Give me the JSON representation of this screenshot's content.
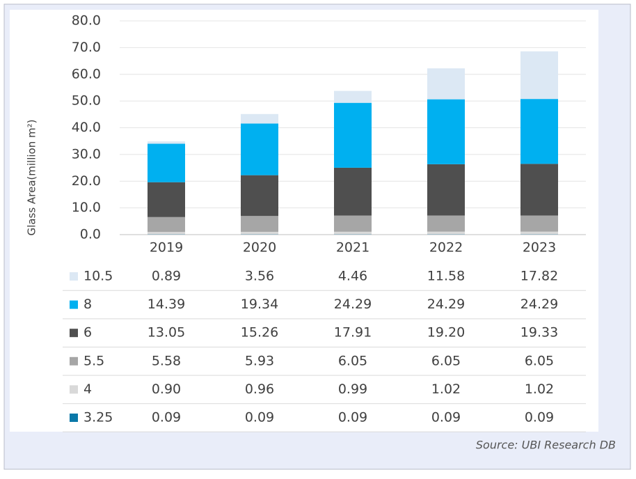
{
  "chart_data": {
    "type": "stacked-bar",
    "y_label": "Glass Area(million m²)",
    "source": "Source: UBI Research DB",
    "categories": [
      "2019",
      "2020",
      "2021",
      "2022",
      "2023"
    ],
    "ylim": [
      0,
      80
    ],
    "yticks": [
      {
        "value": 0,
        "label": "0.0"
      },
      {
        "value": 10,
        "label": "10.0"
      },
      {
        "value": 20,
        "label": "20.0"
      },
      {
        "value": 30,
        "label": "30.0"
      },
      {
        "value": 40,
        "label": "40.0"
      },
      {
        "value": 50,
        "label": "50.0"
      },
      {
        "value": 60,
        "label": "60.0"
      },
      {
        "value": 70,
        "label": "70.0"
      },
      {
        "value": 80,
        "label": "80.0"
      }
    ],
    "grid": true,
    "series": [
      {
        "name": "3.25",
        "color": "#0a78a8",
        "values": [
          0.09,
          0.09,
          0.09,
          0.09,
          0.09
        ],
        "value_labels": [
          "0.09",
          "0.09",
          "0.09",
          "0.09",
          "0.09"
        ]
      },
      {
        "name": "4",
        "color": "#d9d9d9",
        "values": [
          0.9,
          0.96,
          0.99,
          1.02,
          1.02
        ],
        "value_labels": [
          "0.90",
          "0.96",
          "0.99",
          "1.02",
          "1.02"
        ]
      },
      {
        "name": "5.5",
        "color": "#a6a6a6",
        "values": [
          5.58,
          5.93,
          6.05,
          6.05,
          6.05
        ],
        "value_labels": [
          "5.58",
          "5.93",
          "6.05",
          "6.05",
          "6.05"
        ]
      },
      {
        "name": "6",
        "color": "#4f4f4f",
        "values": [
          13.05,
          15.26,
          17.91,
          19.2,
          19.33
        ],
        "value_labels": [
          "13.05",
          "15.26",
          "17.91",
          "19.20",
          "19.33"
        ]
      },
      {
        "name": "8",
        "color": "#00b0f0",
        "values": [
          14.39,
          19.34,
          24.29,
          24.29,
          24.29
        ],
        "value_labels": [
          "14.39",
          "19.34",
          "24.29",
          "24.29",
          "24.29"
        ]
      },
      {
        "name": "10.5",
        "color": "#dce8f4",
        "values": [
          0.89,
          3.56,
          4.46,
          11.58,
          17.82
        ],
        "value_labels": [
          "0.89",
          "3.56",
          "4.46",
          "11.58",
          "17.82"
        ]
      }
    ]
  }
}
